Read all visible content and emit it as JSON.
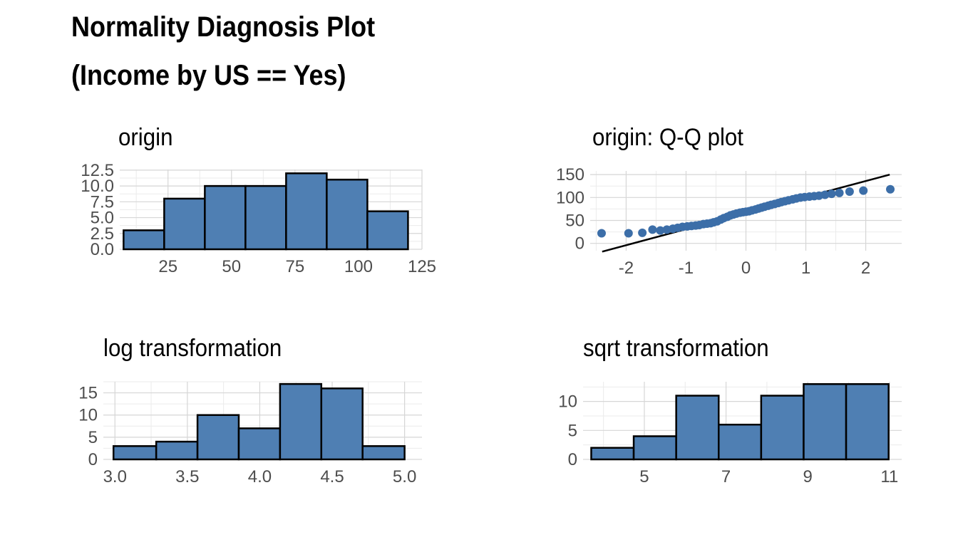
{
  "title": {
    "line1": "Normality Diagnosis Plot",
    "line2": "(Income by US == Yes)"
  },
  "colors": {
    "bar_fill": "#4f7fb3",
    "bar_stroke": "#000000",
    "point": "#3c6ea8",
    "grid": "#d6d6d6",
    "axis_text": "#4d4d4d"
  },
  "chart_data": [
    {
      "type": "bar",
      "subtype": "histogram",
      "title": "origin",
      "bins": [
        {
          "x0": 7.5,
          "x1": 23.5,
          "count": 3
        },
        {
          "x0": 23.5,
          "x1": 39.5,
          "count": 8
        },
        {
          "x0": 39.5,
          "x1": 55.5,
          "count": 10
        },
        {
          "x0": 55.5,
          "x1": 71.5,
          "count": 10
        },
        {
          "x0": 71.5,
          "x1": 87.5,
          "count": 12
        },
        {
          "x0": 87.5,
          "x1": 103.5,
          "count": 11
        },
        {
          "x0": 103.5,
          "x1": 119.5,
          "count": 6
        }
      ],
      "xlim": [
        6,
        125
      ],
      "ylim": [
        0,
        12.6
      ],
      "xticks": [
        25,
        50,
        75,
        100,
        125
      ],
      "yticks": [
        0,
        2.5,
        5,
        7.5,
        10,
        12.5
      ],
      "xticklabels": [
        "25",
        "50",
        "75",
        "100",
        "125"
      ],
      "yticklabels": [
        "0.0",
        "2.5",
        "5.0",
        "7.5",
        "10.0",
        "12.5"
      ],
      "grid": true
    },
    {
      "type": "scatter",
      "subtype": "qq",
      "title": "origin: Q-Q plot",
      "points": [
        [
          -2.41,
          22
        ],
        [
          -1.96,
          22
        ],
        [
          -1.73,
          23
        ],
        [
          -1.56,
          30
        ],
        [
          -1.43,
          28
        ],
        [
          -1.32,
          30
        ],
        [
          -1.22,
          32
        ],
        [
          -1.14,
          34
        ],
        [
          -1.06,
          36
        ],
        [
          -0.98,
          37
        ],
        [
          -0.91,
          38
        ],
        [
          -0.84,
          39
        ],
        [
          -0.78,
          40
        ],
        [
          -0.71,
          42
        ],
        [
          -0.65,
          43
        ],
        [
          -0.59,
          44
        ],
        [
          -0.54,
          46
        ],
        [
          -0.48,
          48
        ],
        [
          -0.42,
          52
        ],
        [
          -0.37,
          55
        ],
        [
          -0.31,
          58
        ],
        [
          -0.26,
          61
        ],
        [
          -0.21,
          63
        ],
        [
          -0.16,
          65
        ],
        [
          -0.1,
          67
        ],
        [
          -0.05,
          68
        ],
        [
          0.0,
          69
        ],
        [
          0.05,
          70
        ],
        [
          0.1,
          72
        ],
        [
          0.16,
          74
        ],
        [
          0.21,
          76
        ],
        [
          0.26,
          78
        ],
        [
          0.31,
          80
        ],
        [
          0.37,
          82
        ],
        [
          0.42,
          84
        ],
        [
          0.48,
          86
        ],
        [
          0.54,
          88
        ],
        [
          0.59,
          90
        ],
        [
          0.65,
          92
        ],
        [
          0.71,
          94
        ],
        [
          0.78,
          96
        ],
        [
          0.84,
          98
        ],
        [
          0.91,
          100
        ],
        [
          0.98,
          101
        ],
        [
          1.06,
          102
        ],
        [
          1.14,
          103
        ],
        [
          1.22,
          104
        ],
        [
          1.32,
          106
        ],
        [
          1.43,
          108
        ],
        [
          1.56,
          110
        ],
        [
          1.73,
          113
        ],
        [
          1.96,
          115
        ],
        [
          2.41,
          118
        ]
      ],
      "line": {
        "intercept": 66,
        "slope": 35
      },
      "xlim": [
        -2.6,
        2.6
      ],
      "ylim": [
        -16,
        158
      ],
      "xticks": [
        -2,
        -1,
        0,
        1,
        2
      ],
      "yticks": [
        0,
        50,
        100,
        150
      ],
      "xticklabels": [
        "-2",
        "-1",
        "0",
        "1",
        "2"
      ],
      "yticklabels": [
        "0",
        "50",
        "100",
        "150"
      ],
      "grid": true
    },
    {
      "type": "bar",
      "subtype": "histogram",
      "title": "log transformation",
      "bins": [
        {
          "x0": 2.99,
          "x1": 3.285,
          "count": 3
        },
        {
          "x0": 3.285,
          "x1": 3.57,
          "count": 4
        },
        {
          "x0": 3.57,
          "x1": 3.855,
          "count": 10
        },
        {
          "x0": 3.855,
          "x1": 4.14,
          "count": 7
        },
        {
          "x0": 4.14,
          "x1": 4.425,
          "count": 17
        },
        {
          "x0": 4.425,
          "x1": 4.71,
          "count": 16
        },
        {
          "x0": 4.71,
          "x1": 5.0,
          "count": 3
        }
      ],
      "xlim": [
        2.92,
        5.12
      ],
      "ylim": [
        0,
        17.5
      ],
      "xticks": [
        3.0,
        3.5,
        4.0,
        4.5,
        5.0
      ],
      "yticks": [
        0,
        5,
        10,
        15
      ],
      "xticklabels": [
        "3.0",
        "3.5",
        "4.0",
        "4.5",
        "5.0"
      ],
      "yticklabels": [
        "0",
        "5",
        "10",
        "15"
      ],
      "grid": true
    },
    {
      "type": "bar",
      "subtype": "histogram",
      "title": "sqrt transformation",
      "bins": [
        {
          "x0": 3.7,
          "x1": 4.74,
          "count": 2
        },
        {
          "x0": 4.74,
          "x1": 5.78,
          "count": 4
        },
        {
          "x0": 5.78,
          "x1": 6.82,
          "count": 11
        },
        {
          "x0": 6.82,
          "x1": 7.86,
          "count": 6
        },
        {
          "x0": 7.86,
          "x1": 8.9,
          "count": 11
        },
        {
          "x0": 8.9,
          "x1": 9.94,
          "count": 13
        },
        {
          "x0": 9.94,
          "x1": 10.98,
          "count": 13
        }
      ],
      "xlim": [
        3.5,
        11.3
      ],
      "ylim": [
        0,
        13.4
      ],
      "xticks": [
        5,
        7,
        9,
        11
      ],
      "yticks": [
        0,
        5,
        10
      ],
      "xticklabels": [
        "5",
        "7",
        "9",
        "11"
      ],
      "yticklabels": [
        "0",
        "5",
        "10"
      ],
      "grid": true
    }
  ]
}
